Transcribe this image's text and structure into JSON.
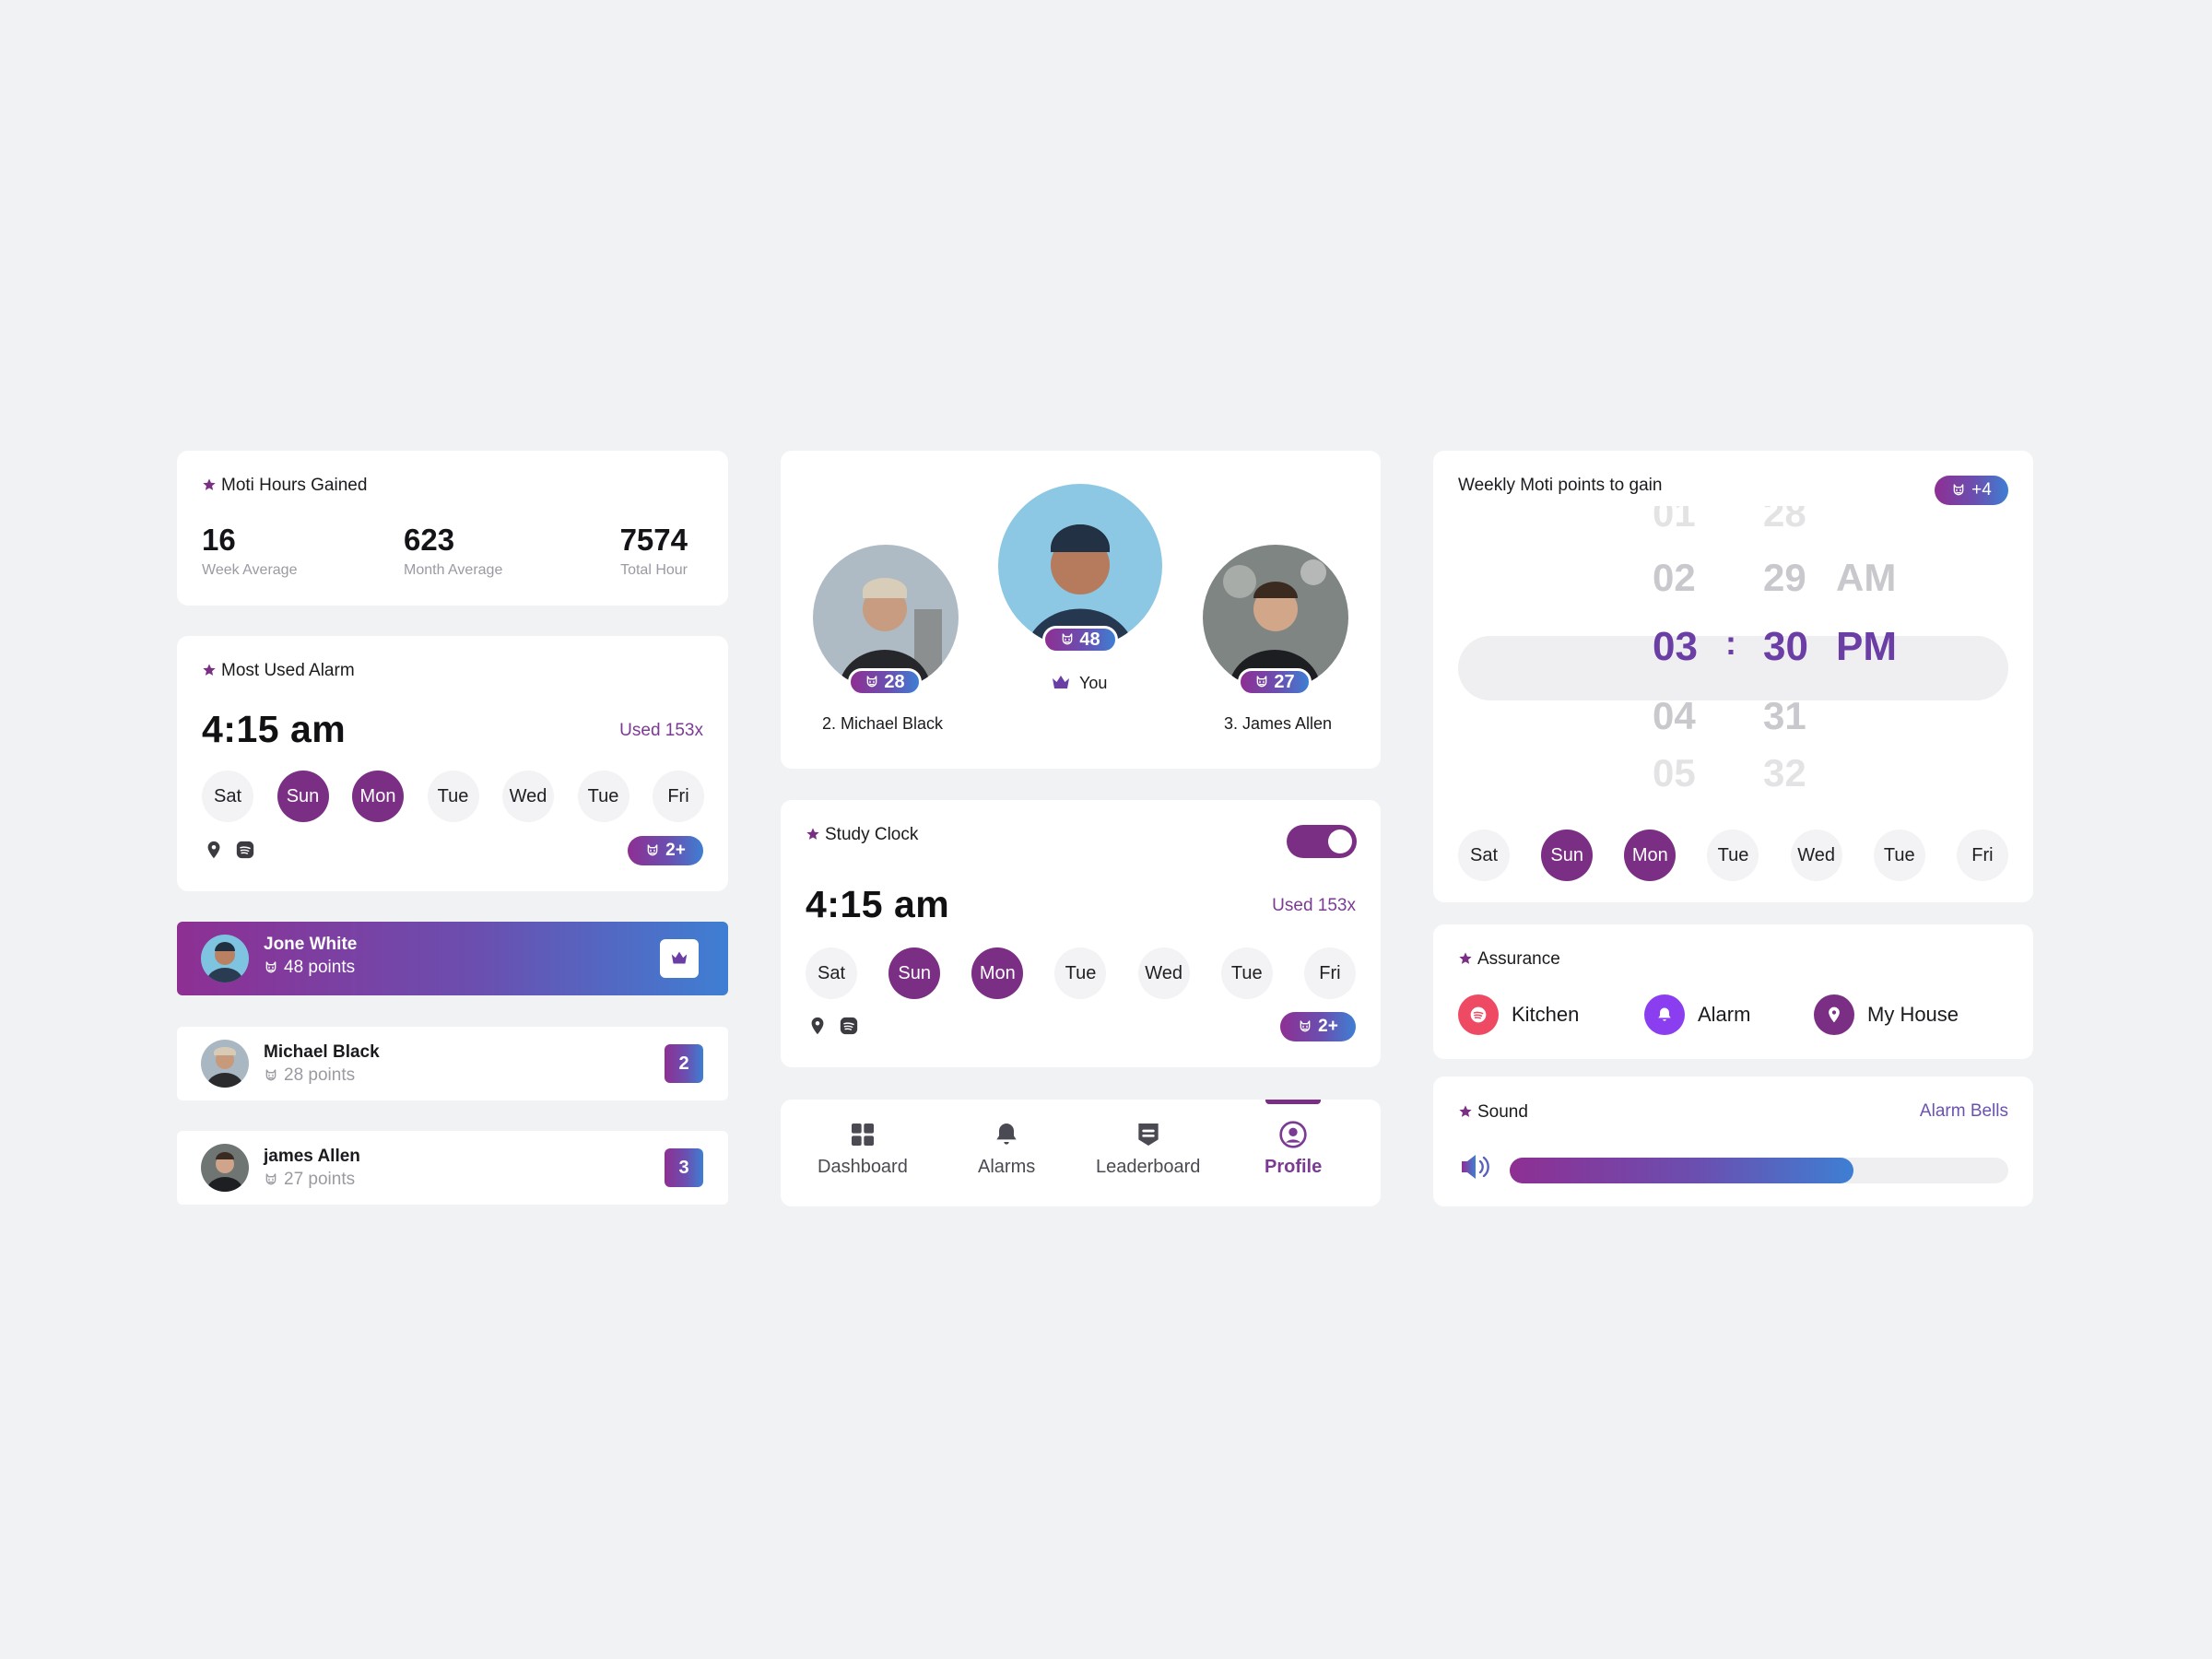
{
  "colors": {
    "background": "#f1f2f4",
    "accent_purple": "#7a2f84",
    "gradient_start": "#8e2f93",
    "gradient_end": "#3e7fd3",
    "kitchen": "#ef4a63",
    "alarm": "#8b3ef0",
    "house": "#7a2f84"
  },
  "hours": {
    "title": "Moti Hours Gained",
    "week_value": "16",
    "week_label": "Week Average",
    "month_value": "623",
    "month_label": "Month Average",
    "total_value": "7574",
    "total_label": "Total Hour"
  },
  "most_used": {
    "title": "Most Used Alarm",
    "time": "4:15 am",
    "used": "Used 153x",
    "days": [
      "Sat",
      "Sun",
      "Mon",
      "Tue",
      "Wed",
      "Tue",
      "Fri"
    ],
    "active_days": [
      1,
      2
    ],
    "badge": "2+",
    "icons": [
      "location-pin-icon",
      "spotify-icon"
    ]
  },
  "leaderboard": [
    {
      "name": "Jone White",
      "points": "48 points",
      "badge": "crown-icon",
      "highlight": true
    },
    {
      "name": "Michael Black",
      "points": "28 points",
      "rank": "2"
    },
    {
      "name": "james Allen",
      "points": "27 points",
      "rank": "3"
    }
  ],
  "podium": {
    "left": {
      "score": "28",
      "name": "2. Michael Black"
    },
    "center": {
      "score": "48",
      "name": "You"
    },
    "right": {
      "score": "27",
      "name": "3. James Allen"
    }
  },
  "study_clock": {
    "title": "Study Clock",
    "toggle_on": true,
    "time": "4:15 am",
    "used": "Used 153x",
    "days": [
      "Sat",
      "Sun",
      "Mon",
      "Tue",
      "Wed",
      "Tue",
      "Fri"
    ],
    "active_days": [
      1,
      2
    ],
    "badge": "2+"
  },
  "nav": {
    "items": [
      {
        "label": "Dashboard",
        "icon": "grid-icon"
      },
      {
        "label": "Alarms",
        "icon": "bell-icon"
      },
      {
        "label": "Leaderboard",
        "icon": "shield-icon"
      },
      {
        "label": "Profile",
        "icon": "user-circle-icon"
      }
    ],
    "active_index": 3
  },
  "weekly": {
    "title": "Weekly Moti points to gain",
    "badge": "+4",
    "hours": [
      "01",
      "02",
      "03",
      "04",
      "05"
    ],
    "minutes": [
      "28",
      "29",
      "30",
      "31",
      "32"
    ],
    "periods": [
      "AM",
      "PM"
    ],
    "selected_hour": "03",
    "selected_minute": "30",
    "selected_period": "PM",
    "separator": ":",
    "days": [
      "Sat",
      "Sun",
      "Mon",
      "Tue",
      "Wed",
      "Tue",
      "Fri"
    ],
    "active_days": [
      1,
      2
    ]
  },
  "assurance": {
    "title": "Assurance",
    "items": [
      {
        "label": "Kitchen",
        "icon": "spotify-icon"
      },
      {
        "label": "Alarm",
        "icon": "bell-icon"
      },
      {
        "label": "My House",
        "icon": "location-pin-icon"
      }
    ]
  },
  "sound": {
    "title": "Sound",
    "link": "Alarm Bells",
    "level": 0.69
  }
}
